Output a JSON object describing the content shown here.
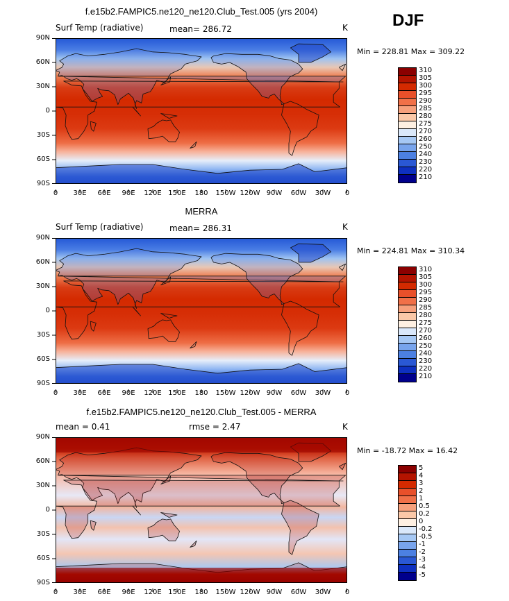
{
  "season_label": "DJF",
  "chart_data": [
    {
      "type": "heatmap",
      "title": "f.e15b2.FAMPIC5.ne120_ne120.Club_Test.005 (yrs 2004)",
      "left_label": "Surf Temp (radiative)",
      "mean_text": "mean= 286.72",
      "rmse_text": "",
      "units": "K",
      "min_max_text": "Min = 228.81 Max = 309.22",
      "xlabels": [
        "0",
        "30E",
        "60E",
        "90E",
        "120E",
        "150E",
        "180",
        "150W",
        "120W",
        "90W",
        "60W",
        "30W",
        "0"
      ],
      "ylabels": [
        "90N",
        "60N",
        "30N",
        "0",
        "30S",
        "60S",
        "90S"
      ],
      "xlim": [
        0,
        360
      ],
      "ylim": [
        -90,
        90
      ],
      "colorbar_levels": [
        "310",
        "305",
        "300",
        "295",
        "290",
        "285",
        "280",
        "275",
        "270",
        "260",
        "250",
        "240",
        "230",
        "220",
        "210"
      ],
      "colorbar_colors": [
        "#8b0000",
        "#b41400",
        "#d42a00",
        "#e8502a",
        "#f07048",
        "#f6a07c",
        "#fac8a8",
        "#fef0e2",
        "#dae8fa",
        "#a6c8f4",
        "#78a4ec",
        "#4c80e2",
        "#2a58d4",
        "#0e30c0",
        "#00008c"
      ]
    },
    {
      "type": "heatmap",
      "title": "MERRA",
      "left_label": "Surf Temp (radiative)",
      "mean_text": "mean= 286.31",
      "rmse_text": "",
      "units": "K",
      "min_max_text": "Min = 224.81 Max = 310.34",
      "xlabels": [
        "0",
        "30E",
        "60E",
        "90E",
        "120E",
        "150E",
        "180",
        "150W",
        "120W",
        "90W",
        "60W",
        "30W",
        "0"
      ],
      "ylabels": [
        "90N",
        "60N",
        "30N",
        "0",
        "30S",
        "60S",
        "90S"
      ],
      "xlim": [
        0,
        360
      ],
      "ylim": [
        -90,
        90
      ],
      "colorbar_levels": [
        "310",
        "305",
        "300",
        "295",
        "290",
        "285",
        "280",
        "275",
        "270",
        "260",
        "250",
        "240",
        "230",
        "220",
        "210"
      ],
      "colorbar_colors": [
        "#8b0000",
        "#b41400",
        "#d42a00",
        "#e8502a",
        "#f07048",
        "#f6a07c",
        "#fac8a8",
        "#fef0e2",
        "#dae8fa",
        "#a6c8f4",
        "#78a4ec",
        "#4c80e2",
        "#2a58d4",
        "#0e30c0",
        "#00008c"
      ]
    },
    {
      "type": "heatmap",
      "title": "f.e15b2.FAMPIC5.ne120_ne120.Club_Test.005 - MERRA",
      "left_label": "mean =     0.41",
      "mean_text": "",
      "rmse_text": "rmse =     2.47",
      "units": "K",
      "min_max_text": "Min = -18.72 Max =  16.42",
      "xlabels": [
        "0",
        "30E",
        "60E",
        "90E",
        "120E",
        "150E",
        "180",
        "150W",
        "120W",
        "90W",
        "60W",
        "30W",
        "0"
      ],
      "ylabels": [
        "90N",
        "60N",
        "30N",
        "0",
        "30S",
        "60S",
        "90S"
      ],
      "xlim": [
        0,
        360
      ],
      "ylim": [
        -90,
        90
      ],
      "colorbar_levels": [
        "5",
        "4",
        "3",
        "2",
        "1",
        "0.5",
        "0.2",
        "0",
        "-0.2",
        "-0.5",
        "-1",
        "-2",
        "-3",
        "-4",
        "-5"
      ],
      "colorbar_colors": [
        "#8b0000",
        "#b41400",
        "#d42a00",
        "#e8502a",
        "#f07048",
        "#f6a07c",
        "#fac8a8",
        "#fef0e2",
        "#dae8fa",
        "#a6c8f4",
        "#78a4ec",
        "#4c80e2",
        "#2a58d4",
        "#0e30c0",
        "#00008c"
      ]
    }
  ]
}
